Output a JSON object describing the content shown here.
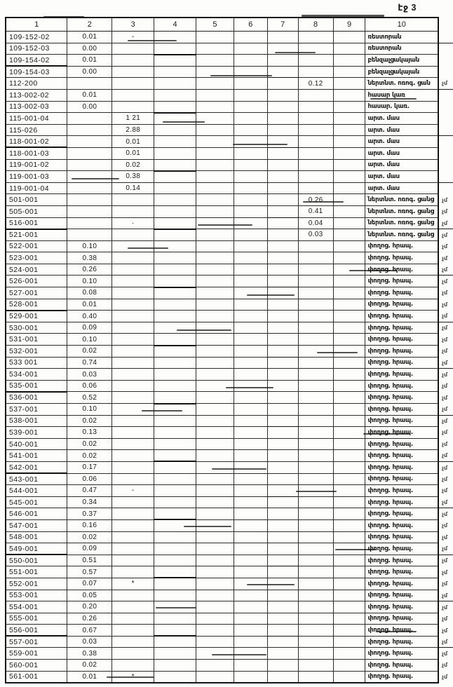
{
  "page": {
    "label": "էջ 3"
  },
  "table": {
    "headers": [
      "1",
      "2",
      "3",
      "4",
      "5",
      "6",
      "7",
      "8",
      "9",
      "10"
    ],
    "rows": [
      {
        "cells": [
          "109-152-02",
          "0.01",
          "-",
          "",
          "",
          "",
          "",
          "",
          "",
          "ռեստորան"
        ],
        "edge": ""
      },
      {
        "cells": [
          "109-152-03",
          "0.00",
          "",
          "",
          "",
          "",
          "",
          "",
          "",
          "ռեստորան"
        ],
        "edge": ""
      },
      {
        "cells": [
          "109-154-02",
          "0.01",
          "",
          "",
          "",
          "",
          "",
          "",
          "",
          "բենզալցակայան"
        ],
        "edge": ""
      },
      {
        "cells": [
          "109-154-03",
          "0.00",
          "",
          "",
          "",
          "",
          "",
          "",
          "",
          "բենզալցակայան"
        ],
        "edge": ""
      },
      {
        "cells": [
          "112-200",
          "",
          "",
          "",
          "",
          "",
          "",
          "0.12",
          "",
          "ներտնտ. ոռոգ. ցան"
        ],
        "edge": "չմ"
      },
      {
        "cells": [
          "113-002-02",
          "0.01",
          "",
          "",
          "",
          "",
          "",
          "",
          "",
          "հասար կառ"
        ],
        "edge": ""
      },
      {
        "cells": [
          "113-002-03",
          "0.00",
          "",
          "",
          "",
          "",
          "",
          "",
          "",
          "հասար. կառ."
        ],
        "edge": ""
      },
      {
        "cells": [
          "115-001-04",
          "",
          "1 21",
          "",
          "",
          "",
          "",
          "",
          "",
          "արտ. մաս"
        ],
        "edge": ""
      },
      {
        "cells": [
          "115-026",
          "",
          "2.88",
          "",
          "",
          "",
          "",
          "",
          "",
          "արտ. մաս"
        ],
        "edge": ""
      },
      {
        "cells": [
          "118-001-02",
          "",
          "0.01",
          "",
          "",
          "",
          "",
          "",
          "",
          "արտ. մաս"
        ],
        "edge": ""
      },
      {
        "cells": [
          "118-001-03",
          "",
          "0.01",
          "",
          "",
          "",
          "",
          "",
          "",
          "արտ. մաս"
        ],
        "edge": ""
      },
      {
        "cells": [
          "119-001-02",
          "",
          "0.02",
          "",
          "",
          "",
          "",
          "",
          "",
          "արտ. մաս"
        ],
        "edge": ""
      },
      {
        "cells": [
          "119-001-03",
          "",
          "0.38",
          "",
          "",
          "",
          "",
          "",
          "",
          "արտ. մաս"
        ],
        "edge": ""
      },
      {
        "cells": [
          "119-001-04",
          "",
          "0.14",
          "",
          "",
          "",
          "",
          "",
          "",
          "արտ. մաս"
        ],
        "edge": ""
      },
      {
        "cells": [
          "501-001",
          "",
          "",
          "",
          "",
          "",
          "",
          "0.26",
          "",
          "ներտնտ. ոռոգ. ցանց"
        ],
        "edge": "չմ"
      },
      {
        "cells": [
          "505-001",
          "",
          "",
          "",
          "",
          "",
          "",
          "0.41",
          "",
          "ներտնտ. ոռոգ. ցանց"
        ],
        "edge": "չմ"
      },
      {
        "cells": [
          "516-001",
          "",
          "·",
          "",
          "",
          "",
          "",
          "0.04",
          "",
          "ներտնտ. ոռոգ. ցանց"
        ],
        "edge": "չմ"
      },
      {
        "cells": [
          "521-001",
          "",
          "",
          "",
          "",
          "",
          "",
          "0.03",
          "",
          "ներտնտ. ոռոգ. ցանց"
        ],
        "edge": "չմ"
      },
      {
        "cells": [
          "522-001",
          "0.10",
          "",
          "",
          "",
          "",
          "",
          "",
          "",
          "փողոց. հրապ."
        ],
        "edge": "չմ"
      },
      {
        "cells": [
          "523-001",
          "0.38",
          "",
          "",
          "",
          "",
          "",
          "",
          "",
          "փողոց. հրապ."
        ],
        "edge": "չմ"
      },
      {
        "cells": [
          "524-001",
          "0.26",
          "",
          "",
          "",
          "",
          "",
          "",
          "",
          "փողոց. հրապ."
        ],
        "edge": "չմ"
      },
      {
        "cells": [
          "526-001",
          "0.10",
          "",
          "",
          "",
          "",
          "",
          "",
          "",
          "փողոց. հրապ."
        ],
        "edge": "չմ"
      },
      {
        "cells": [
          "527-001",
          "0.08",
          "",
          "",
          "",
          "",
          "",
          "",
          "",
          "փողոց. հրապ."
        ],
        "edge": "չմ"
      },
      {
        "cells": [
          "528-001",
          "0.01",
          "",
          "",
          "",
          "",
          "",
          "",
          "",
          "փողոց. հրապ."
        ],
        "edge": "չմ"
      },
      {
        "cells": [
          "529-001",
          "0.40",
          "",
          "",
          "",
          "",
          "",
          "",
          "",
          "փողոց. հրապ."
        ],
        "edge": "չմ"
      },
      {
        "cells": [
          "530-001",
          "0.09",
          "",
          "",
          "",
          "",
          "",
          "",
          "",
          "փողոց. հրապ."
        ],
        "edge": "չմ"
      },
      {
        "cells": [
          "531-001",
          "0.10",
          "",
          "",
          "",
          "",
          "",
          "",
          "",
          "փողոց. հրապ."
        ],
        "edge": "չմ"
      },
      {
        "cells": [
          "532-001",
          "0.02",
          "",
          "",
          "",
          "",
          "",
          "",
          "",
          "փողոց. հրապ."
        ],
        "edge": "չմ"
      },
      {
        "cells": [
          "533 001",
          "0.74",
          "",
          "",
          "",
          "",
          "",
          "",
          "",
          "փողոց. հրապ."
        ],
        "edge": "չմ"
      },
      {
        "cells": [
          "534-001",
          "0.03",
          "",
          "",
          "",
          "",
          "",
          "",
          "",
          "փողոց. հրապ."
        ],
        "edge": "չմ"
      },
      {
        "cells": [
          "535-001",
          "0.06",
          "",
          "",
          "",
          "",
          "",
          "",
          "",
          "փողոց. հրապ."
        ],
        "edge": "չմ"
      },
      {
        "cells": [
          "536-001",
          "0.52",
          "",
          "",
          "",
          "",
          "",
          "",
          "",
          "փողոց. հրապ."
        ],
        "edge": "չմ"
      },
      {
        "cells": [
          "537-001",
          "0.10",
          "",
          "",
          "",
          "",
          "",
          "",
          "",
          "փողոց. հրապ."
        ],
        "edge": "չմ"
      },
      {
        "cells": [
          "538-001",
          "0.02",
          "",
          "",
          "",
          "",
          "",
          "",
          "",
          "փողոց. հրապ."
        ],
        "edge": "չմ"
      },
      {
        "cells": [
          "539-001",
          "0.13",
          "",
          "",
          "",
          "",
          "",
          "",
          "",
          "փողոց. հրապ."
        ],
        "edge": "չմ"
      },
      {
        "cells": [
          "540-001",
          "0.02",
          "",
          "",
          "",
          "",
          "",
          "",
          "",
          "փողոց. հրապ."
        ],
        "edge": "չմ"
      },
      {
        "cells": [
          "541-001",
          "0.02",
          "",
          "",
          "",
          "",
          "",
          "",
          "",
          "փողոց. հրապ."
        ],
        "edge": "չմ"
      },
      {
        "cells": [
          "542-001",
          "0.17",
          "",
          "",
          "",
          "",
          "",
          "",
          "",
          "փողոց. հրապ."
        ],
        "edge": "չմ"
      },
      {
        "cells": [
          "543-001",
          "0.06",
          "",
          "",
          "",
          "",
          "",
          "",
          "",
          "փողոց. հրապ."
        ],
        "edge": "չմ"
      },
      {
        "cells": [
          "544-001",
          "0.47",
          "-",
          "",
          "",
          "",
          "",
          "",
          "",
          "փողոց. հրապ."
        ],
        "edge": "չմ"
      },
      {
        "cells": [
          "545-001",
          "0.34",
          "",
          "",
          "",
          "",
          "",
          "",
          "",
          "փողոց. հրապ."
        ],
        "edge": "չմ"
      },
      {
        "cells": [
          "546-001",
          "0.37",
          "",
          "",
          "",
          "",
          "",
          "",
          "",
          "փողոց. հրապ."
        ],
        "edge": "չմ"
      },
      {
        "cells": [
          "547-001",
          "0.16",
          "",
          "",
          "",
          "",
          "",
          "",
          "",
          "փողոց. հրապ."
        ],
        "edge": "չմ"
      },
      {
        "cells": [
          "548-001",
          "0.02",
          "",
          "",
          "",
          "",
          "",
          "",
          "",
          "փողոց. հրապ."
        ],
        "edge": "չմ"
      },
      {
        "cells": [
          "549-001",
          "0.09",
          "",
          "",
          "",
          "",
          "",
          "",
          "",
          "փողոց. հրապ."
        ],
        "edge": "չմ"
      },
      {
        "cells": [
          "550-001",
          "0.51",
          "",
          "",
          "",
          "",
          "",
          "",
          "",
          "փողոց. հրապ."
        ],
        "edge": "չմ"
      },
      {
        "cells": [
          "551-001",
          "0.57",
          "",
          "",
          "",
          "",
          "",
          "",
          "",
          "փողոց. հրապ."
        ],
        "edge": "չմ"
      },
      {
        "cells": [
          "552-001",
          "0.07",
          "*",
          "",
          "",
          "",
          "",
          "",
          "",
          "փողոց. հրապ."
        ],
        "edge": "չմ"
      },
      {
        "cells": [
          "553-001",
          "0.05",
          "",
          "",
          "",
          "",
          "",
          "",
          "",
          "փողոց. հրապ."
        ],
        "edge": "չմ"
      },
      {
        "cells": [
          "554-001",
          "0.20",
          "",
          "",
          "",
          "",
          "",
          "",
          "",
          "փողոց. հրապ."
        ],
        "edge": "չմ"
      },
      {
        "cells": [
          "555-001",
          "0.26",
          "",
          "",
          "",
          "",
          "",
          "",
          "",
          "փողոց. հրապ."
        ],
        "edge": "չմ"
      },
      {
        "cells": [
          "556-001",
          "0.67",
          "",
          "",
          "",
          "",
          "",
          "",
          "",
          "փողոց. հրապ."
        ],
        "edge": "չմ"
      },
      {
        "cells": [
          "557-001",
          "0.03",
          "",
          "",
          "",
          "",
          "",
          "",
          "",
          "փողոց. հրապ."
        ],
        "edge": "չմ"
      },
      {
        "cells": [
          "559-001",
          "0.38",
          "",
          "",
          "",
          "",
          "",
          "",
          "",
          "փողոց. հրապ."
        ],
        "edge": "չմ"
      },
      {
        "cells": [
          "560-001",
          "0.02",
          "",
          "",
          "",
          "",
          "",
          "",
          "",
          "փողոց. հրապ."
        ],
        "edge": "չմ"
      },
      {
        "cells": [
          "561-001",
          "0.01",
          "*",
          "",
          "",
          "",
          "",
          "",
          "",
          "փողոց. հրապ."
        ],
        "edge": "չմ"
      }
    ]
  }
}
